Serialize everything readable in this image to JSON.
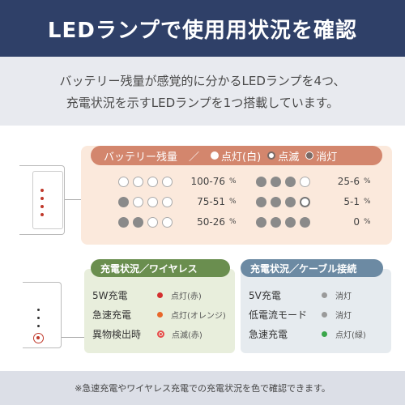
{
  "title": "LEDランプで使用用状況を確認",
  "intro": {
    "line1": "バッテリー残量が感覚的に分かるLEDランプを4つ、",
    "line2": "充電状況を示すLEDランプを1つ搭載しています。"
  },
  "battery": {
    "header_label": "バッテリー残量",
    "separator": "／",
    "legend": [
      {
        "label": "点灯(白)",
        "style": "on"
      },
      {
        "label": "点滅",
        "style": "blink"
      },
      {
        "label": "消灯",
        "style": "off"
      }
    ],
    "rows_left": [
      {
        "leds": [
          "on",
          "on",
          "on",
          "on"
        ],
        "range": "100-76"
      },
      {
        "leds": [
          "off",
          "on",
          "on",
          "on"
        ],
        "range": "75-51"
      },
      {
        "leds": [
          "off",
          "off",
          "on",
          "on"
        ],
        "range": "50-26"
      }
    ],
    "rows_right": [
      {
        "leds": [
          "off",
          "off",
          "off",
          "on"
        ],
        "range": "25-6"
      },
      {
        "leds": [
          "off",
          "off",
          "off",
          "blink"
        ],
        "range": "5-1"
      },
      {
        "leds": [
          "off",
          "off",
          "off",
          "off"
        ],
        "range": "0"
      }
    ],
    "percent_sign": "%"
  },
  "wireless": {
    "header": "充電状況／ワイヤレス",
    "rows": [
      {
        "label": "5W充電",
        "status": "点灯(赤)",
        "dot_color": "#d32f2f",
        "style": "solid"
      },
      {
        "label": "急速充電",
        "status": "点灯(オレンジ)",
        "dot_color": "#e8672a",
        "style": "solid"
      },
      {
        "label": "異物検出時",
        "status": "点滅(赤)",
        "dot_color": "#e84a4a",
        "style": "blink"
      }
    ]
  },
  "cable": {
    "header": "充電状況／ケーブル接続",
    "rows": [
      {
        "label": "5V充電",
        "status": "消灯",
        "dot_color": "#9a9a9a",
        "style": "solid"
      },
      {
        "label": "低電流モード",
        "status": "消灯",
        "dot_color": "#9a9a9a",
        "style": "solid"
      },
      {
        "label": "急速充電",
        "status": "点灯(緑)",
        "dot_color": "#3aa64a",
        "style": "solid"
      }
    ]
  },
  "footer_note": "※急速充電やワイヤレス充電での充電状況を色で確認できます。",
  "colors": {
    "title_bg": "#2f4068",
    "battery_header": "#d3866d",
    "wireless_header": "#6a8e4f",
    "cable_header": "#6c8aa3"
  }
}
